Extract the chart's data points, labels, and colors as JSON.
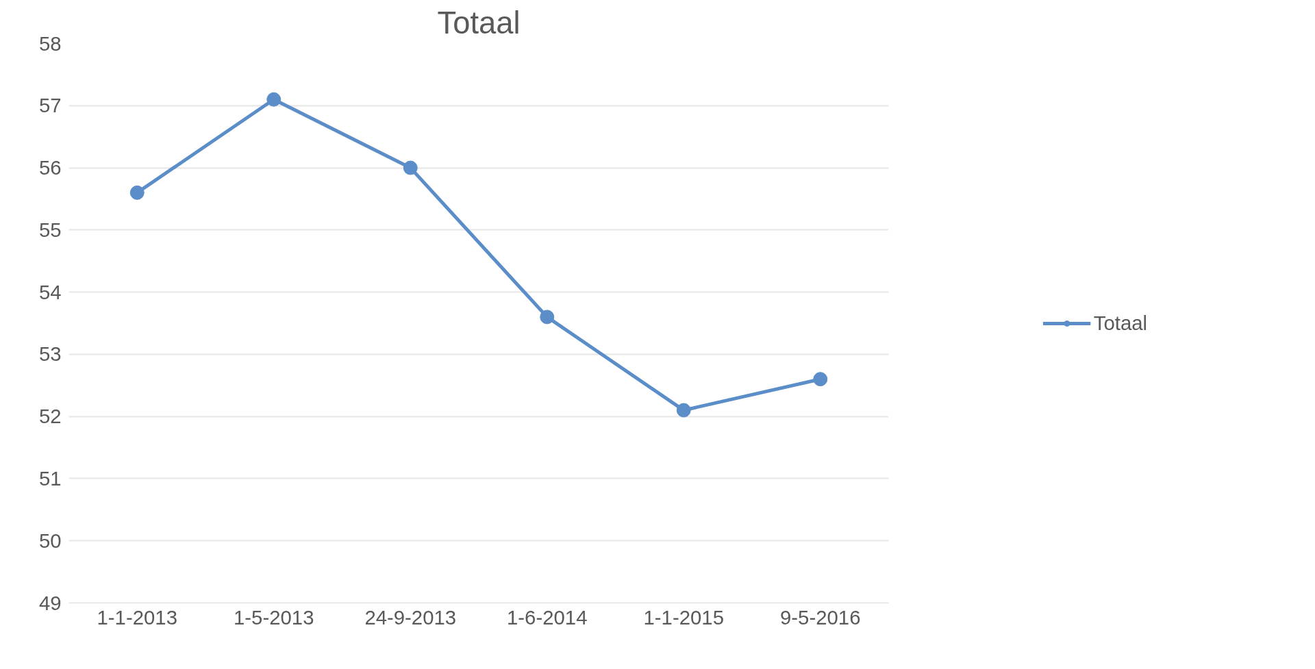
{
  "chart_data": {
    "type": "line",
    "title": "Totaal",
    "categories": [
      "1-1-2013",
      "1-5-2013",
      "24-9-2013",
      "1-6-2014",
      "1-1-2015",
      "9-5-2016"
    ],
    "series": [
      {
        "name": "Totaal",
        "color": "#5b8ec9",
        "values": [
          55.6,
          57.1,
          56.0,
          53.6,
          52.1,
          52.6
        ]
      }
    ],
    "ylim": [
      49,
      58
    ],
    "yticks": [
      49,
      50,
      51,
      52,
      53,
      54,
      55,
      56,
      57,
      58
    ],
    "grid": "y",
    "legend": "right",
    "marker": "circle",
    "line_style": "solid"
  }
}
